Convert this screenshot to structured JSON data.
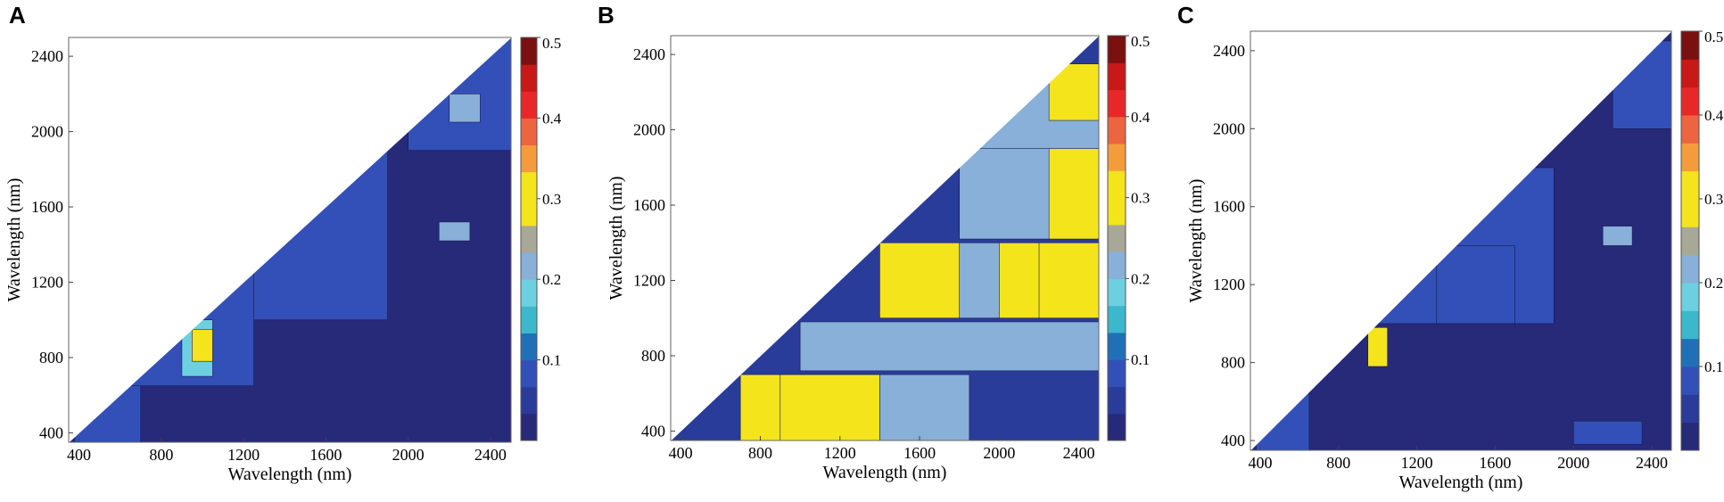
{
  "colorscale": {
    "bands": [
      "#262a78",
      "#2a3c9a",
      "#3350b8",
      "#2070b8",
      "#3cb8cc",
      "#6cd0e0",
      "#88b0d8",
      "#a8a898",
      "#f4e41c",
      "#f4e41c",
      "#f49c3c",
      "#ec6440",
      "#e82828",
      "#c81818",
      "#7a1010"
    ],
    "tick_labels": [
      "0.1",
      "0.2",
      "0.3",
      "0.4",
      "0.5"
    ],
    "tick_values": [
      0.1,
      0.2,
      0.3,
      0.4,
      0.5
    ],
    "range": [
      0,
      0.5
    ]
  },
  "chart_data": [
    {
      "panel": "A",
      "type": "heatmap",
      "xlabel": "Wavelength (nm)",
      "ylabel": "Wavelength (nm)",
      "xlim": [
        350,
        2500
      ],
      "ylim": [
        350,
        2500
      ],
      "xticks": [
        400,
        800,
        1200,
        1600,
        2000,
        2400
      ],
      "yticks": [
        400,
        800,
        1200,
        1600,
        2000,
        2400
      ],
      "shape": "upper-left triangle",
      "colorbar_range": [
        0,
        0.5
      ],
      "regions": [
        {
          "x": [
            350,
            2500
          ],
          "y": [
            350,
            2500
          ],
          "value": 0.03
        },
        {
          "x": [
            1000,
            1900
          ],
          "y": [
            1000,
            1900
          ],
          "value": 0.07
        },
        {
          "x": [
            380,
            700
          ],
          "y": [
            350,
            700
          ],
          "value": 0.08
        },
        {
          "x": [
            650,
            1250
          ],
          "y": [
            650,
            1250
          ],
          "value": 0.09
        },
        {
          "x": [
            2000,
            2500
          ],
          "y": [
            1900,
            2500
          ],
          "value": 0.08
        },
        {
          "x": [
            900,
            1050
          ],
          "y": [
            700,
            1000
          ],
          "value": 0.18
        },
        {
          "x": [
            950,
            1050
          ],
          "y": [
            780,
            950
          ],
          "value": 0.32
        },
        {
          "x": [
            2150,
            2300
          ],
          "y": [
            1420,
            1520
          ],
          "value": 0.2
        },
        {
          "x": [
            2200,
            2350
          ],
          "y": [
            2050,
            2200
          ],
          "value": 0.22
        }
      ]
    },
    {
      "panel": "B",
      "type": "heatmap",
      "xlabel": "Wavelength (nm)",
      "ylabel": "Wavelength (nm)",
      "xlim": [
        350,
        2500
      ],
      "ylim": [
        350,
        2500
      ],
      "xticks": [
        400,
        800,
        1200,
        1600,
        2000,
        2400
      ],
      "yticks": [
        400,
        800,
        1200,
        1600,
        2000,
        2400
      ],
      "shape": "upper-left triangle",
      "colorbar_range": [
        0,
        0.5
      ],
      "regions": [
        {
          "x": [
            350,
            2500
          ],
          "y": [
            350,
            2500
          ],
          "value": 0.05
        },
        {
          "x": [
            700,
            1400
          ],
          "y": [
            350,
            700
          ],
          "value": 0.27
        },
        {
          "x": [
            900,
            1400
          ],
          "y": [
            350,
            700
          ],
          "value": 0.33
        },
        {
          "x": [
            1400,
            1850
          ],
          "y": [
            350,
            700
          ],
          "value": 0.2
        },
        {
          "x": [
            1000,
            2500
          ],
          "y": [
            720,
            980
          ],
          "value": 0.2
        },
        {
          "x": [
            1400,
            2500
          ],
          "y": [
            1000,
            1400
          ],
          "value": 0.27
        },
        {
          "x": [
            1800,
            2000
          ],
          "y": [
            1000,
            1400
          ],
          "value": 0.22
        },
        {
          "x": [
            2200,
            2500
          ],
          "y": [
            1000,
            1400
          ],
          "value": 0.33
        },
        {
          "x": [
            1800,
            2500
          ],
          "y": [
            1420,
            1900
          ],
          "value": 0.22
        },
        {
          "x": [
            2250,
            2500
          ],
          "y": [
            1420,
            1900
          ],
          "value": 0.27
        },
        {
          "x": [
            1900,
            2500
          ],
          "y": [
            1900,
            2300
          ],
          "value": 0.2
        },
        {
          "x": [
            2250,
            2500
          ],
          "y": [
            2050,
            2350
          ],
          "value": 0.33
        }
      ]
    },
    {
      "panel": "C",
      "type": "heatmap",
      "xlabel": "Wavelength (nm)",
      "ylabel": "Wavelength (nm)",
      "xlim": [
        350,
        2500
      ],
      "ylim": [
        350,
        2500
      ],
      "xticks": [
        400,
        800,
        1200,
        1600,
        2000,
        2400
      ],
      "yticks": [
        400,
        800,
        1200,
        1600,
        2000,
        2400
      ],
      "shape": "upper-left triangle",
      "colorbar_range": [
        0,
        0.5
      ],
      "regions": [
        {
          "x": [
            350,
            2500
          ],
          "y": [
            350,
            2500
          ],
          "value": 0.03
        },
        {
          "x": [
            1000,
            1900
          ],
          "y": [
            1000,
            1800
          ],
          "value": 0.07
        },
        {
          "x": [
            1300,
            1700
          ],
          "y": [
            1000,
            1400
          ],
          "value": 0.08
        },
        {
          "x": [
            380,
            650
          ],
          "y": [
            350,
            650
          ],
          "value": 0.08
        },
        {
          "x": [
            950,
            1050
          ],
          "y": [
            780,
            980
          ],
          "value": 0.3
        },
        {
          "x": [
            2200,
            2500
          ],
          "y": [
            2000,
            2450
          ],
          "value": 0.08
        },
        {
          "x": [
            2150,
            2300
          ],
          "y": [
            1400,
            1500
          ],
          "value": 0.2
        },
        {
          "x": [
            2000,
            2350
          ],
          "y": [
            380,
            500
          ],
          "value": 0.08
        }
      ]
    }
  ],
  "panels": [
    {
      "letter": "A",
      "xlabel": "Wavelength (nm)",
      "ylabel": "Wavelength (nm)"
    },
    {
      "letter": "B",
      "xlabel": "Wavelength (nm)",
      "ylabel": "Wavelength (nm)"
    },
    {
      "letter": "C",
      "xlabel": "Wavelength (nm)",
      "ylabel": "Wavelength (nm)"
    }
  ]
}
